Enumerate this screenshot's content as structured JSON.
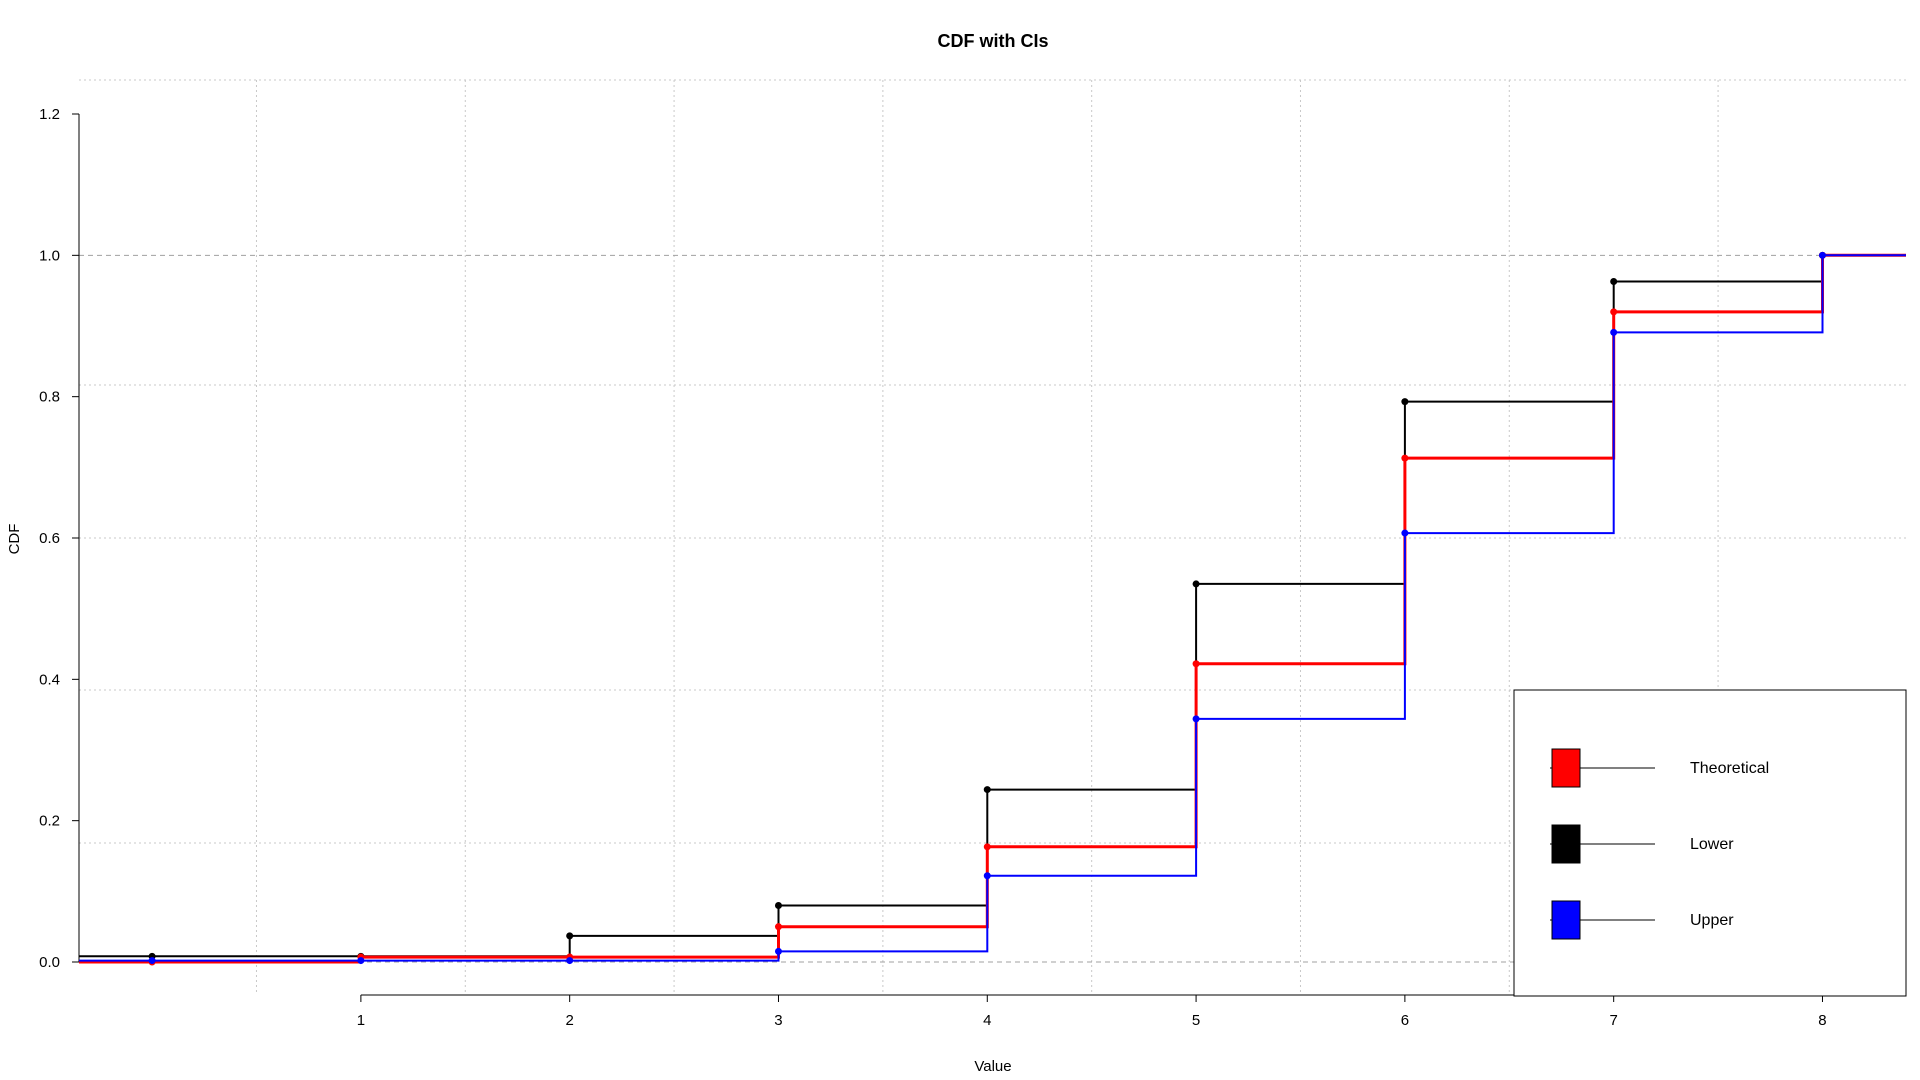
{
  "chart_data": {
    "type": "line",
    "subtype": "step",
    "title": "CDF with CIs",
    "xlabel": "Value",
    "ylabel": "CDF",
    "xlim": [
      -0.35,
      8.4
    ],
    "ylim": [
      0.0,
      1.2
    ],
    "xticks": [
      "1",
      "2",
      "3",
      "4",
      "5",
      "6",
      "7",
      "8"
    ],
    "yticks": [
      "0.0",
      "0.2",
      "0.4",
      "0.6",
      "0.8",
      "1.0",
      "1.2"
    ],
    "grid": true,
    "legend_position": "bottom-right",
    "series": [
      {
        "name": "Lower",
        "color": "#000000",
        "x": [
          0,
          1,
          2,
          3,
          4,
          5,
          6,
          7,
          8
        ],
        "y": [
          0.008,
          0.008,
          0.037,
          0.08,
          0.244,
          0.535,
          0.793,
          0.963,
          1.0
        ]
      },
      {
        "name": "Theoretical",
        "color": "#ff0000",
        "x": [
          0,
          1,
          2,
          3,
          4,
          5,
          6,
          7,
          8
        ],
        "y": [
          0.0,
          0.007,
          0.007,
          0.05,
          0.163,
          0.422,
          0.713,
          0.92,
          1.0
        ]
      },
      {
        "name": "Upper",
        "color": "#0000ff",
        "x": [
          0,
          1,
          2,
          3,
          4,
          5,
          6,
          7,
          8
        ],
        "y": [
          0.002,
          0.002,
          0.002,
          0.015,
          0.122,
          0.344,
          0.607,
          0.891,
          1.0
        ]
      }
    ],
    "legend": [
      {
        "label": "Theoretical",
        "color": "#ff0000"
      },
      {
        "label": "Lower",
        "color": "#000000"
      },
      {
        "label": "Upper",
        "color": "#0000ff"
      }
    ]
  }
}
